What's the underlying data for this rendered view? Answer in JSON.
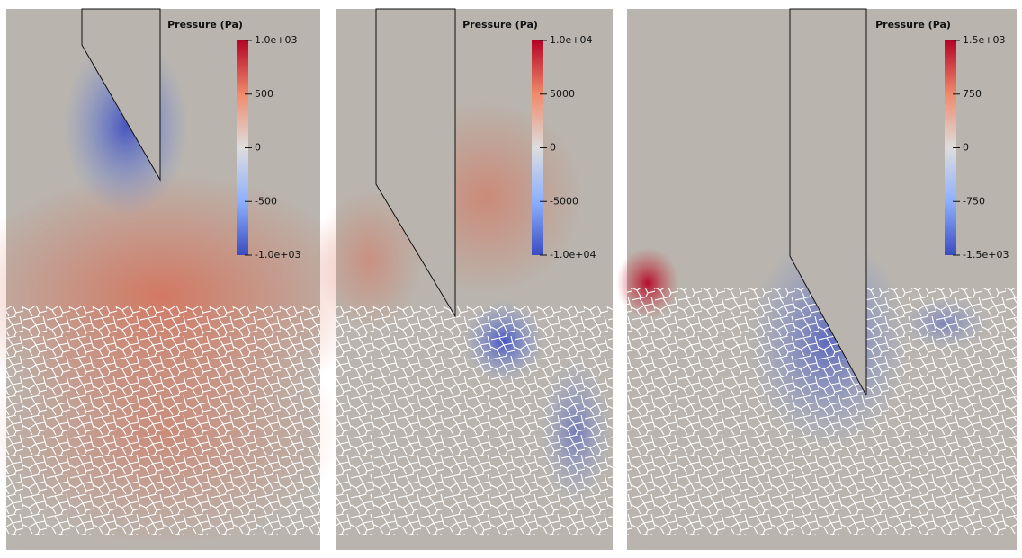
{
  "panels": [
    {
      "colorbar": {
        "title": "Pressure (Pa)",
        "range": [
          -1000,
          1000
        ],
        "ticks": [
          {
            "value": 1000,
            "label": "1.0e+03"
          },
          500,
          0,
          -500,
          {
            "value": -1000,
            "label": "-1.0e+03"
          }
        ]
      }
    },
    {
      "colorbar": {
        "title": "Pressure (Pa)",
        "range": [
          -10000,
          10000
        ],
        "ticks": [
          {
            "value": 10000,
            "label": "1.0e+04"
          },
          5000,
          0,
          -5000,
          {
            "value": -10000,
            "label": "-1.0e+04"
          }
        ]
      }
    },
    {
      "colorbar": {
        "title": "Pressure (Pa)",
        "range": [
          -1500,
          1500
        ],
        "ticks": [
          {
            "value": 1500,
            "label": "1.5e+03"
          },
          750,
          0,
          -750,
          {
            "value": -1500,
            "label": "-1.5e+03"
          }
        ]
      }
    }
  ]
}
